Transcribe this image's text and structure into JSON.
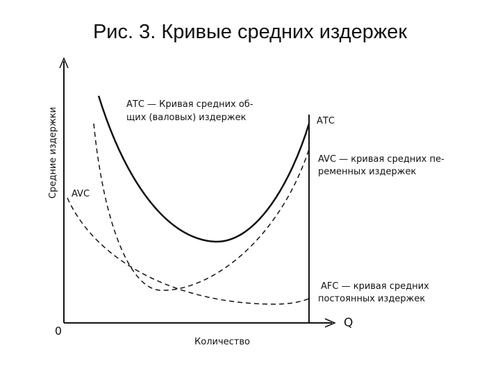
{
  "title": "Рис. 3. Кривые средних издержек",
  "axes": {
    "y_label": "Средние издержки",
    "x_label": "Количество",
    "origin": "0",
    "x_end": "Q"
  },
  "labels": {
    "atc_note": [
      "АТС — Кривая средних об-",
      "щих (валовых) издержек"
    ],
    "atc_end": "АТС",
    "avc_note": [
      "AVC — кривая средних пе-",
      "ременных издержек"
    ],
    "avc_start": "AVC",
    "afc_note": [
      "AFC — кривая средних",
      "постоянных издержек"
    ]
  }
}
